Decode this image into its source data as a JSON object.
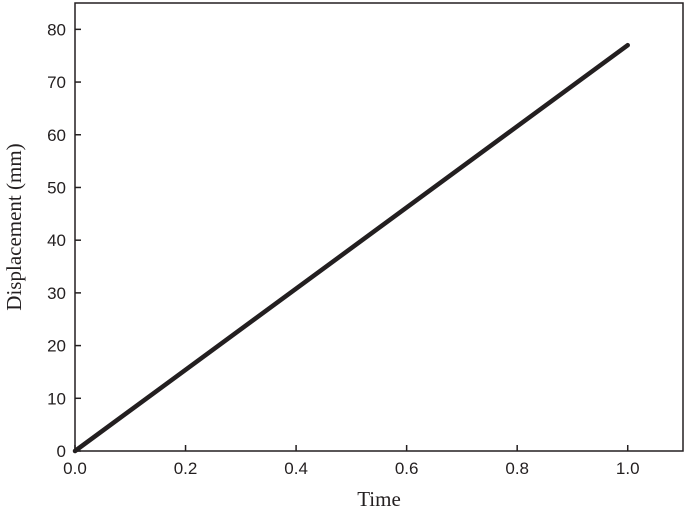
{
  "chart_data": {
    "type": "line",
    "x_label": "Time",
    "y_label": "Displacement (mm)",
    "x": [
      0,
      1.0
    ],
    "values": [
      0,
      77
    ],
    "color": "#231f20",
    "xlim": [
      0,
      1.1
    ],
    "xticks": [
      {
        "value": 0,
        "label": "0.0"
      },
      0.2,
      0.4,
      0.6,
      0.8,
      {
        "value": 1,
        "label": "1.0"
      }
    ],
    "ylim": [
      0,
      85
    ],
    "yticks": [
      0,
      10,
      20,
      30,
      40,
      50,
      60,
      70,
      80
    ]
  }
}
